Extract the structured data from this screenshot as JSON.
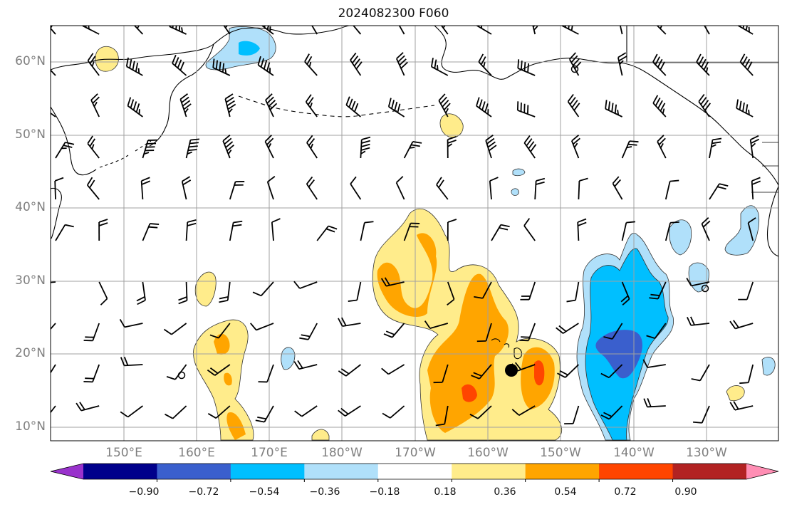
{
  "title": "2024082300 F060",
  "map": {
    "region": "North Pacific",
    "lat_labels": [
      "60°N",
      "50°N",
      "40°N",
      "30°N",
      "20°N",
      "10°N"
    ],
    "lon_labels": [
      "150°E",
      "160°E",
      "170°E",
      "180°W",
      "170°W",
      "160°W",
      "150°W",
      "140°W",
      "130°W"
    ],
    "colors": {
      "land_outline": "#000000",
      "grid": "#a0a0a0",
      "barb": "#000000"
    }
  },
  "colorbar": {
    "ticks": [
      "−0.90",
      "−0.72",
      "−0.54",
      "−0.36",
      "−0.18",
      "0.18",
      "0.36",
      "0.54",
      "0.72",
      "0.90"
    ],
    "colors": [
      "#9932cc",
      "#00008b",
      "#3a5fcd",
      "#00bfff",
      "#b0e0fa",
      "#ffffff",
      "#ffec8b",
      "#ffa500",
      "#ff4500",
      "#b22222",
      "#ff8eb4"
    ]
  }
}
